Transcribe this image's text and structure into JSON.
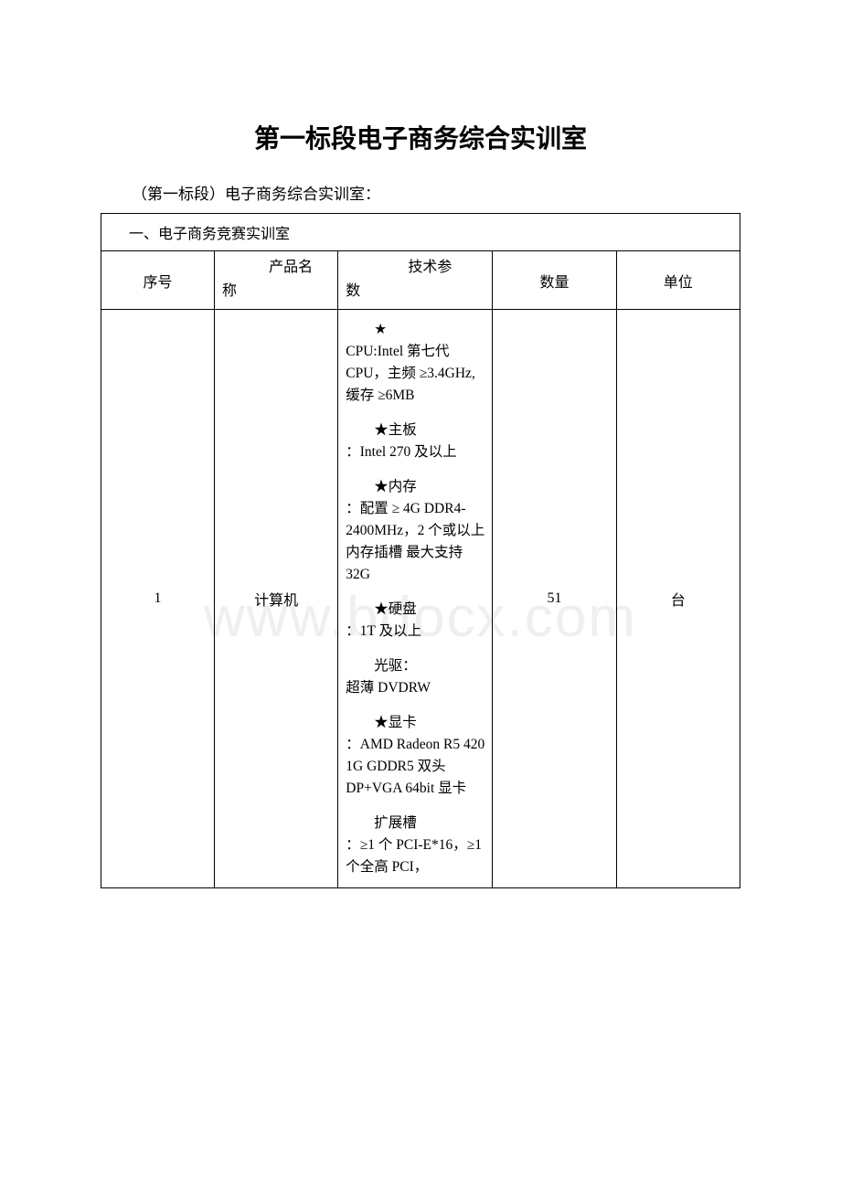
{
  "watermark": "www.bdocx.com",
  "title": "第一标段电子商务综合实训室",
  "subtitle_prefix": "（第一标段）电子商务综合实训室：",
  "section_header": "一、电子商务竞赛实训室",
  "columns": {
    "seq": "序号",
    "name_top": "产品名",
    "name_bottom": "称",
    "spec_top": "技术参",
    "spec_bottom": "数",
    "qty": "数量",
    "unit": "单位"
  },
  "row": {
    "seq": "1",
    "name": "计算机",
    "qty": "51",
    "unit": "台",
    "spec_blocks": [
      {
        "first": "★",
        "rest": "CPU:Intel 第七代 CPU，主频 ≥3.4GHz,缓存 ≥6MB"
      },
      {
        "first": "★主板",
        "rest": "：Intel 270 及以上"
      },
      {
        "first": "★内存",
        "rest": "：配置 ≥ 4G DDR4-2400MHz，2 个或以上内存插槽 最大支持 32G"
      },
      {
        "first": "★硬盘",
        "rest": "：1T 及以上"
      },
      {
        "first": "光驱：",
        "rest": "超薄 DVDRW"
      },
      {
        "first": "★显卡",
        "rest": "：AMD Radeon R5 420 1G GDDR5 双头 DP+VGA 64bit 显卡"
      },
      {
        "first": "扩展槽",
        "rest": "：≥1 个 PCI-E*16，≥1 个全高 PCI，"
      }
    ]
  }
}
